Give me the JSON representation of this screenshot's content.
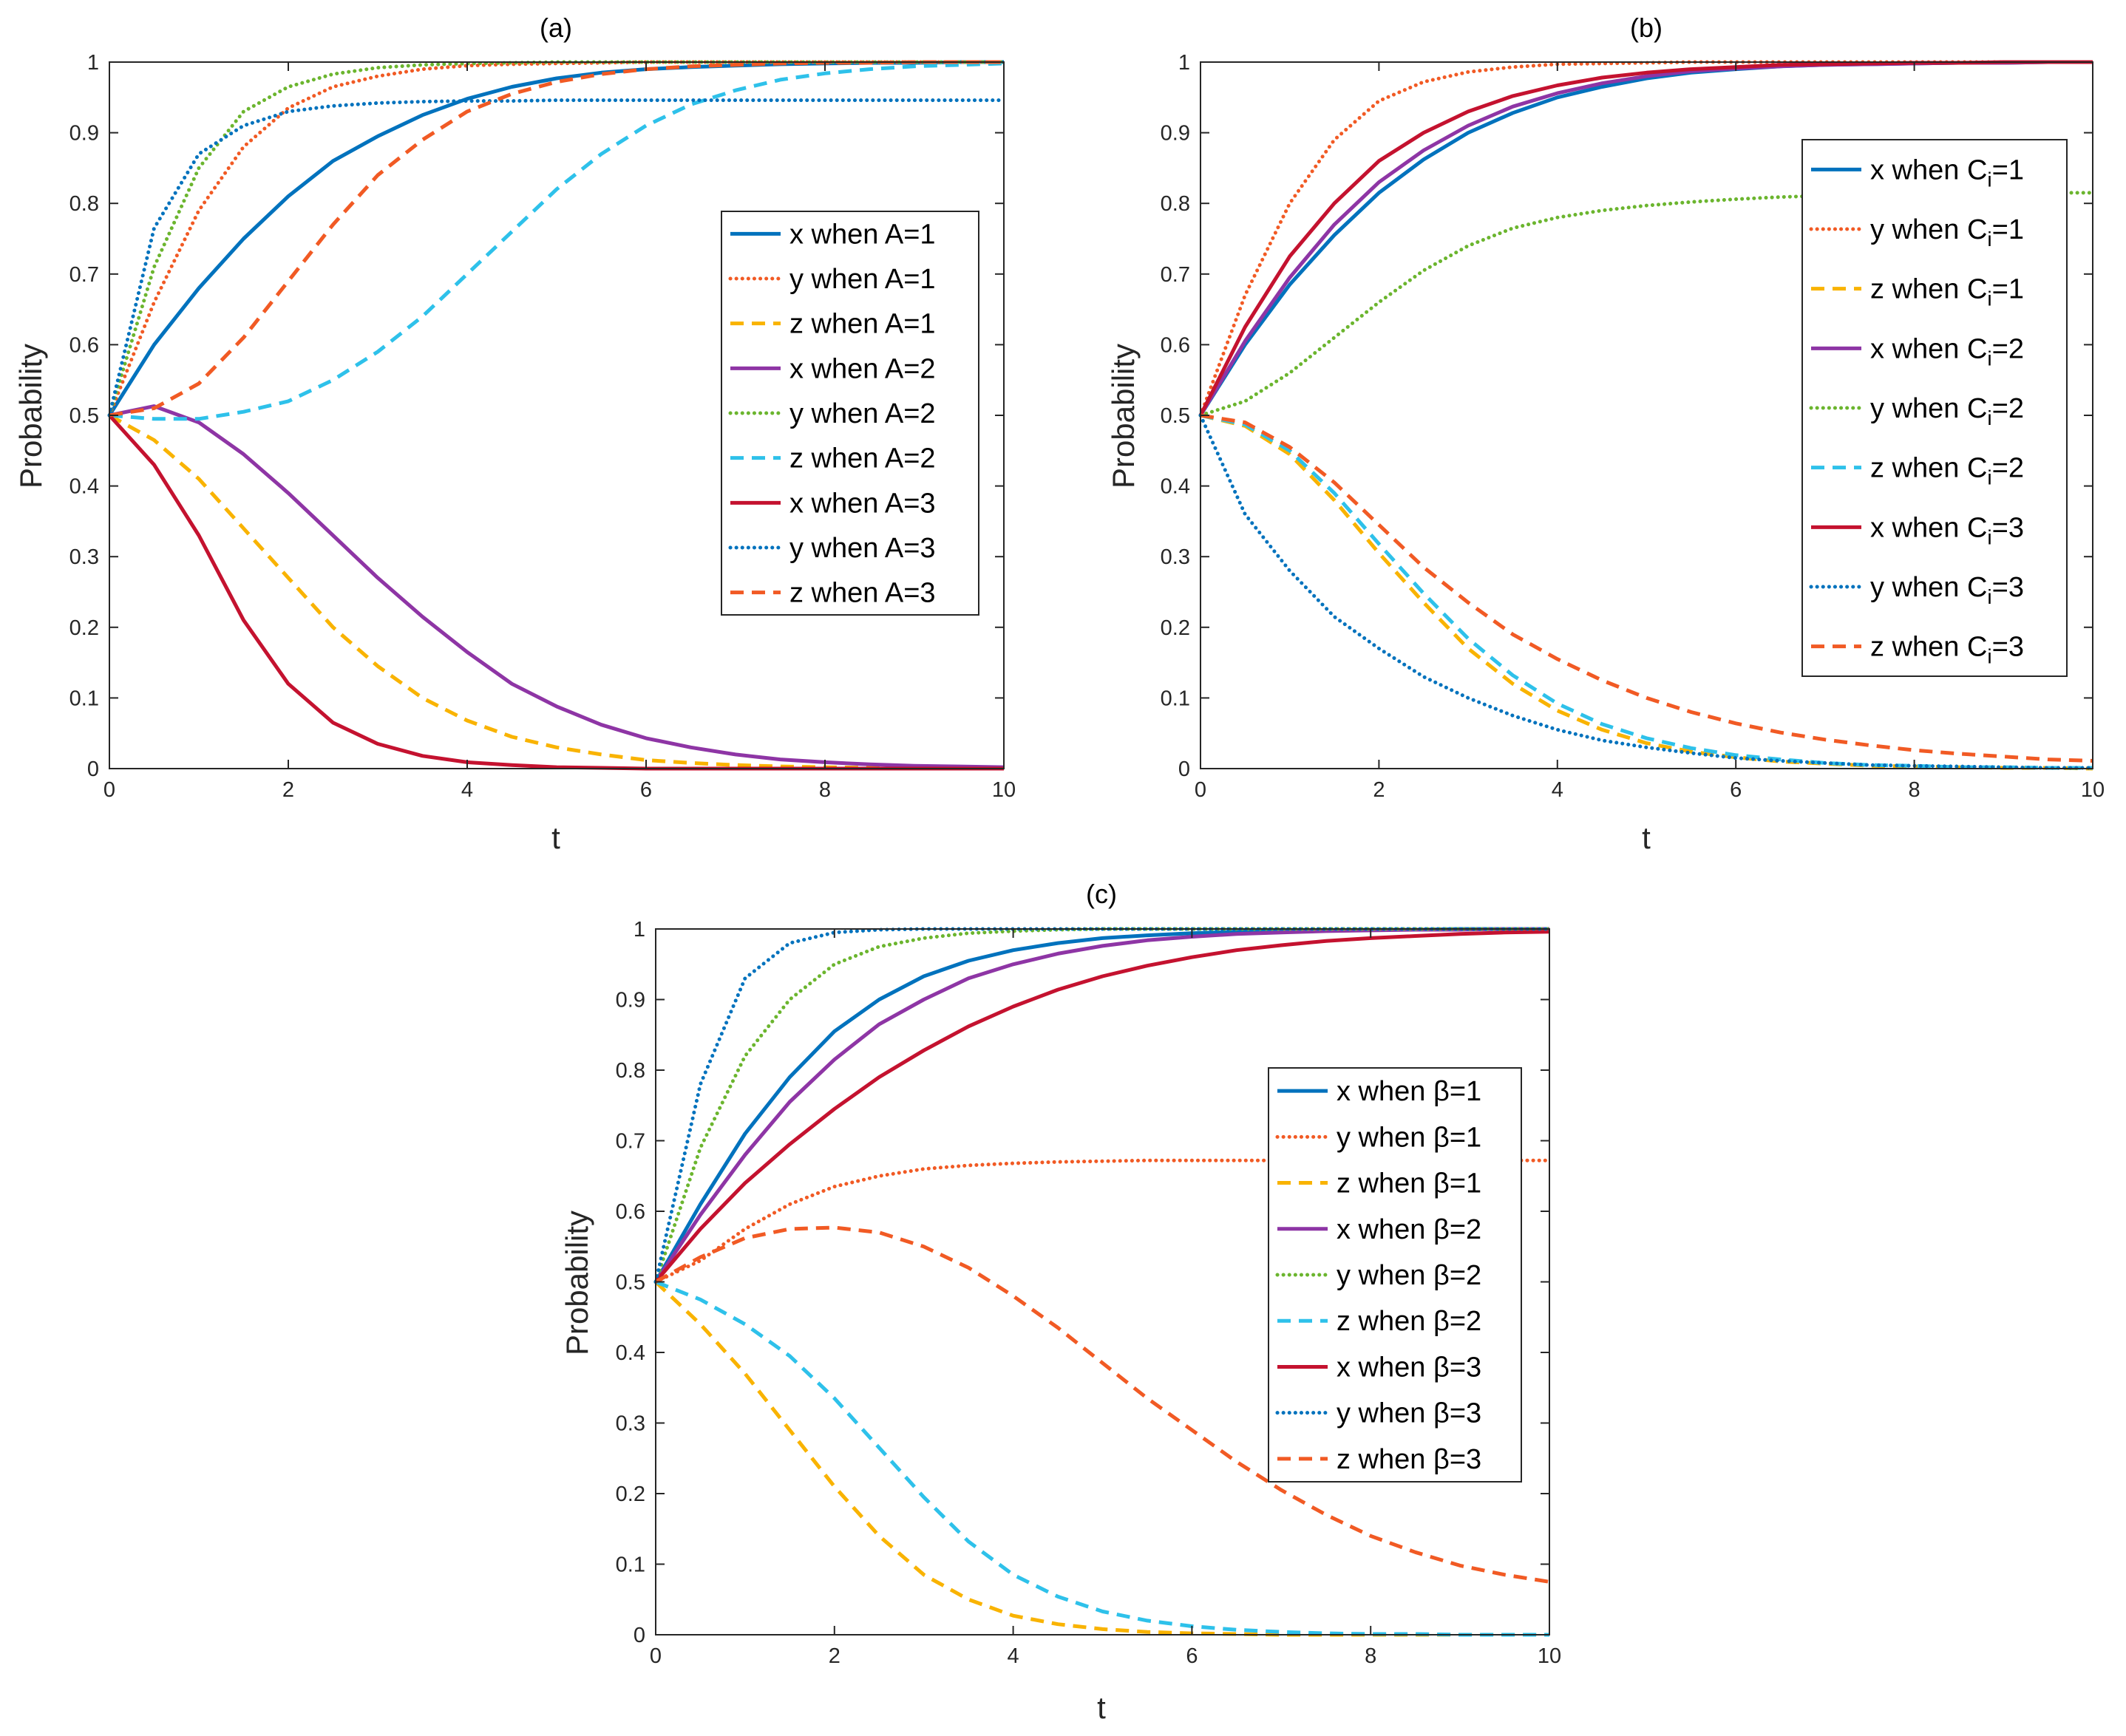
{
  "colors": {
    "blue": "#0072BD",
    "orange": "#F15A24",
    "yellow": "#F9B300",
    "purple": "#8E35A5",
    "green": "#6BB52E",
    "cyan": "#2EC1EA",
    "red": "#C4122F",
    "axis": "#262626"
  },
  "chart_data": [
    {
      "type": "line",
      "title": "(a)",
      "xlabel": "t",
      "ylabel": "Probability",
      "xlim": [
        0,
        10
      ],
      "ylim": [
        0,
        1
      ],
      "xticks": [
        "0",
        "2",
        "4",
        "6",
        "8",
        "10"
      ],
      "yticks": [
        "0",
        "0.1",
        "0.2",
        "0.3",
        "0.4",
        "0.5",
        "0.6",
        "0.7",
        "0.8",
        "0.9",
        "1"
      ],
      "legend_position": "center-right",
      "x": [
        0,
        0.5,
        1,
        1.5,
        2,
        2.5,
        3,
        3.5,
        4,
        4.5,
        5,
        5.5,
        6,
        6.5,
        7,
        7.5,
        8,
        8.5,
        9,
        9.5,
        10
      ],
      "series": [
        {
          "name": "x when A=1",
          "color": "blue",
          "style": "solid",
          "values": [
            0.5,
            0.6,
            0.68,
            0.75,
            0.81,
            0.86,
            0.895,
            0.925,
            0.948,
            0.965,
            0.977,
            0.985,
            0.99,
            0.993,
            0.995,
            0.997,
            0.998,
            0.999,
            0.999,
            1.0,
            1.0
          ]
        },
        {
          "name": "y when A=1",
          "color": "orange",
          "style": "dotted",
          "values": [
            0.5,
            0.66,
            0.79,
            0.88,
            0.935,
            0.965,
            0.98,
            0.99,
            0.995,
            0.997,
            0.998,
            0.999,
            1.0,
            1.0,
            1.0,
            1.0,
            1.0,
            1.0,
            1.0,
            1.0,
            1.0
          ]
        },
        {
          "name": "z when A=1",
          "color": "yellow",
          "style": "dashed",
          "values": [
            0.5,
            0.465,
            0.41,
            0.34,
            0.27,
            0.2,
            0.145,
            0.1,
            0.068,
            0.045,
            0.03,
            0.02,
            0.012,
            0.008,
            0.005,
            0.003,
            0.002,
            0.001,
            0.001,
            0.0,
            0.0
          ]
        },
        {
          "name": "x when A=2",
          "color": "purple",
          "style": "solid",
          "values": [
            0.5,
            0.513,
            0.49,
            0.445,
            0.39,
            0.33,
            0.27,
            0.215,
            0.165,
            0.12,
            0.088,
            0.062,
            0.043,
            0.03,
            0.02,
            0.013,
            0.009,
            0.006,
            0.004,
            0.003,
            0.002
          ]
        },
        {
          "name": "y when A=2",
          "color": "green",
          "style": "dotted",
          "values": [
            0.5,
            0.71,
            0.85,
            0.93,
            0.965,
            0.983,
            0.992,
            0.996,
            0.998,
            0.999,
            1.0,
            1.0,
            1.0,
            1.0,
            1.0,
            1.0,
            1.0,
            1.0,
            1.0,
            1.0,
            1.0
          ]
        },
        {
          "name": "z when A=2",
          "color": "cyan",
          "style": "dashed",
          "values": [
            0.5,
            0.495,
            0.495,
            0.505,
            0.52,
            0.55,
            0.59,
            0.64,
            0.7,
            0.76,
            0.82,
            0.87,
            0.91,
            0.94,
            0.96,
            0.975,
            0.984,
            0.99,
            0.994,
            0.996,
            0.998
          ]
        },
        {
          "name": "x when A=3",
          "color": "red",
          "style": "solid",
          "values": [
            0.5,
            0.43,
            0.33,
            0.21,
            0.12,
            0.065,
            0.035,
            0.018,
            0.009,
            0.005,
            0.002,
            0.001,
            0.0,
            0.0,
            0.0,
            0.0,
            0.0,
            0.0,
            0.0,
            0.0,
            0.0
          ]
        },
        {
          "name": "y when A=3",
          "color": "blue",
          "style": "dotted",
          "values": [
            0.5,
            0.765,
            0.87,
            0.91,
            0.93,
            0.938,
            0.942,
            0.944,
            0.945,
            0.945,
            0.946,
            0.946,
            0.946,
            0.946,
            0.946,
            0.946,
            0.946,
            0.946,
            0.946,
            0.946,
            0.946
          ]
        },
        {
          "name": "z when A=3",
          "color": "orange",
          "style": "dashed",
          "values": [
            0.5,
            0.51,
            0.545,
            0.61,
            0.69,
            0.77,
            0.84,
            0.89,
            0.93,
            0.955,
            0.972,
            0.983,
            0.99,
            0.994,
            0.996,
            0.998,
            0.999,
            0.999,
            1.0,
            1.0,
            1.0
          ]
        }
      ]
    },
    {
      "type": "line",
      "title": "(b)",
      "xlabel": "t",
      "ylabel": "Probability",
      "xlim": [
        0,
        10
      ],
      "ylim": [
        0,
        1
      ],
      "xticks": [
        "0",
        "2",
        "4",
        "6",
        "8",
        "10"
      ],
      "yticks": [
        "0",
        "0.1",
        "0.2",
        "0.3",
        "0.4",
        "0.5",
        "0.6",
        "0.7",
        "0.8",
        "0.9",
        "1"
      ],
      "legend_position": "right",
      "legend_sub": "i",
      "x": [
        0,
        0.5,
        1,
        1.5,
        2,
        2.5,
        3,
        3.5,
        4,
        4.5,
        5,
        5.5,
        6,
        6.5,
        7,
        7.5,
        8,
        8.5,
        9,
        9.5,
        10
      ],
      "series": [
        {
          "name": "x when C",
          "suffix": "=1",
          "color": "blue",
          "style": "solid",
          "values": [
            0.5,
            0.6,
            0.685,
            0.755,
            0.815,
            0.862,
            0.9,
            0.928,
            0.95,
            0.965,
            0.977,
            0.985,
            0.99,
            0.994,
            0.996,
            0.997,
            0.998,
            0.999,
            0.999,
            1.0,
            1.0
          ]
        },
        {
          "name": "y when C",
          "suffix": "=1",
          "color": "orange",
          "style": "dotted",
          "values": [
            0.5,
            0.67,
            0.8,
            0.89,
            0.945,
            0.972,
            0.986,
            0.993,
            0.997,
            0.998,
            0.999,
            1.0,
            1.0,
            1.0,
            1.0,
            1.0,
            1.0,
            1.0,
            1.0,
            1.0,
            1.0
          ]
        },
        {
          "name": "z when C",
          "suffix": "=1",
          "color": "yellow",
          "style": "dashed",
          "values": [
            0.5,
            0.485,
            0.445,
            0.38,
            0.305,
            0.235,
            0.17,
            0.12,
            0.082,
            0.055,
            0.036,
            0.024,
            0.016,
            0.01,
            0.007,
            0.004,
            0.003,
            0.002,
            0.001,
            0.001,
            0.0
          ]
        },
        {
          "name": "x when C",
          "suffix": "=2",
          "color": "purple",
          "style": "solid",
          "values": [
            0.5,
            0.605,
            0.695,
            0.77,
            0.83,
            0.875,
            0.91,
            0.937,
            0.956,
            0.97,
            0.98,
            0.987,
            0.991,
            0.994,
            0.996,
            0.997,
            0.998,
            0.999,
            0.999,
            1.0,
            1.0
          ]
        },
        {
          "name": "y when C",
          "suffix": "=2",
          "color": "green",
          "style": "dotted",
          "values": [
            0.5,
            0.52,
            0.56,
            0.61,
            0.66,
            0.705,
            0.74,
            0.765,
            0.78,
            0.79,
            0.797,
            0.802,
            0.806,
            0.809,
            0.811,
            0.812,
            0.813,
            0.814,
            0.815,
            0.815,
            0.815
          ]
        },
        {
          "name": "z when C",
          "suffix": "=2",
          "color": "cyan",
          "style": "dashed",
          "values": [
            0.5,
            0.487,
            0.45,
            0.39,
            0.318,
            0.248,
            0.184,
            0.132,
            0.092,
            0.063,
            0.043,
            0.029,
            0.019,
            0.013,
            0.008,
            0.005,
            0.004,
            0.002,
            0.002,
            0.001,
            0.001
          ]
        },
        {
          "name": "x when C",
          "suffix": "=3",
          "color": "red",
          "style": "solid",
          "values": [
            0.5,
            0.625,
            0.725,
            0.8,
            0.86,
            0.9,
            0.93,
            0.952,
            0.967,
            0.978,
            0.985,
            0.99,
            0.993,
            0.996,
            0.997,
            0.998,
            0.999,
            0.999,
            1.0,
            1.0,
            1.0
          ]
        },
        {
          "name": "y when C",
          "suffix": "=3",
          "color": "blue",
          "style": "dotted",
          "values": [
            0.5,
            0.36,
            0.28,
            0.215,
            0.17,
            0.13,
            0.1,
            0.075,
            0.055,
            0.04,
            0.03,
            0.022,
            0.015,
            0.011,
            0.008,
            0.005,
            0.004,
            0.003,
            0.002,
            0.001,
            0.001
          ]
        },
        {
          "name": "z when C",
          "suffix": "=3",
          "color": "orange",
          "style": "dashed",
          "values": [
            0.5,
            0.49,
            0.455,
            0.405,
            0.345,
            0.285,
            0.235,
            0.19,
            0.155,
            0.125,
            0.1,
            0.08,
            0.064,
            0.051,
            0.041,
            0.033,
            0.026,
            0.021,
            0.017,
            0.013,
            0.011
          ]
        }
      ]
    },
    {
      "type": "line",
      "title": "(c)",
      "xlabel": "t",
      "ylabel": "Probability",
      "xlim": [
        0,
        10
      ],
      "ylim": [
        0,
        1
      ],
      "xticks": [
        "0",
        "2",
        "4",
        "6",
        "8",
        "10"
      ],
      "yticks": [
        "0",
        "0.1",
        "0.2",
        "0.3",
        "0.4",
        "0.5",
        "0.6",
        "0.7",
        "0.8",
        "0.9",
        "1"
      ],
      "legend_position": "right",
      "x": [
        0,
        0.5,
        1,
        1.5,
        2,
        2.5,
        3,
        3.5,
        4,
        4.5,
        5,
        5.5,
        6,
        6.5,
        7,
        7.5,
        8,
        8.5,
        9,
        9.5,
        10
      ],
      "series": [
        {
          "name": "x when β=1",
          "color": "blue",
          "style": "solid",
          "values": [
            0.5,
            0.61,
            0.71,
            0.79,
            0.855,
            0.9,
            0.933,
            0.955,
            0.97,
            0.98,
            0.987,
            0.991,
            0.994,
            0.996,
            0.997,
            0.998,
            0.999,
            0.999,
            1.0,
            1.0,
            1.0
          ]
        },
        {
          "name": "y when β=1",
          "color": "orange",
          "style": "dotted",
          "values": [
            0.5,
            0.53,
            0.575,
            0.61,
            0.635,
            0.65,
            0.66,
            0.665,
            0.668,
            0.67,
            0.671,
            0.672,
            0.672,
            0.672,
            0.672,
            0.672,
            0.672,
            0.672,
            0.672,
            0.672,
            0.672
          ]
        },
        {
          "name": "z when β=1",
          "color": "yellow",
          "style": "dashed",
          "values": [
            0.5,
            0.44,
            0.37,
            0.29,
            0.21,
            0.14,
            0.085,
            0.05,
            0.027,
            0.015,
            0.008,
            0.004,
            0.002,
            0.001,
            0.0,
            0.0,
            0.0,
            0.0,
            0.0,
            0.0,
            0.0
          ]
        },
        {
          "name": "x when β=2",
          "color": "purple",
          "style": "solid",
          "values": [
            0.5,
            0.595,
            0.68,
            0.755,
            0.815,
            0.865,
            0.9,
            0.93,
            0.95,
            0.965,
            0.976,
            0.984,
            0.989,
            0.993,
            0.995,
            0.997,
            0.998,
            0.999,
            0.999,
            1.0,
            1.0
          ]
        },
        {
          "name": "y when β=2",
          "color": "green",
          "style": "dotted",
          "values": [
            0.5,
            0.69,
            0.82,
            0.9,
            0.95,
            0.975,
            0.987,
            0.994,
            0.997,
            0.999,
            1.0,
            1.0,
            1.0,
            1.0,
            1.0,
            1.0,
            1.0,
            1.0,
            1.0,
            1.0,
            1.0
          ]
        },
        {
          "name": "z when β=2",
          "color": "cyan",
          "style": "dashed",
          "values": [
            0.5,
            0.475,
            0.44,
            0.395,
            0.335,
            0.265,
            0.195,
            0.132,
            0.085,
            0.054,
            0.033,
            0.02,
            0.012,
            0.007,
            0.004,
            0.002,
            0.001,
            0.001,
            0.0,
            0.0,
            0.0
          ]
        },
        {
          "name": "x when β=3",
          "color": "red",
          "style": "solid",
          "values": [
            0.5,
            0.575,
            0.64,
            0.695,
            0.745,
            0.79,
            0.828,
            0.862,
            0.89,
            0.914,
            0.933,
            0.948,
            0.96,
            0.97,
            0.977,
            0.983,
            0.987,
            0.99,
            0.993,
            0.995,
            0.996
          ]
        },
        {
          "name": "y when β=3",
          "color": "blue",
          "style": "dotted",
          "values": [
            0.5,
            0.78,
            0.93,
            0.98,
            0.995,
            0.999,
            1.0,
            1.0,
            1.0,
            1.0,
            1.0,
            1.0,
            1.0,
            1.0,
            1.0,
            1.0,
            1.0,
            1.0,
            1.0,
            1.0,
            1.0
          ]
        },
        {
          "name": "z when β=3",
          "color": "orange",
          "style": "dashed",
          "values": [
            0.5,
            0.535,
            0.562,
            0.575,
            0.577,
            0.57,
            0.55,
            0.52,
            0.48,
            0.435,
            0.385,
            0.335,
            0.29,
            0.245,
            0.205,
            0.17,
            0.14,
            0.117,
            0.098,
            0.085,
            0.075
          ]
        }
      ]
    }
  ]
}
